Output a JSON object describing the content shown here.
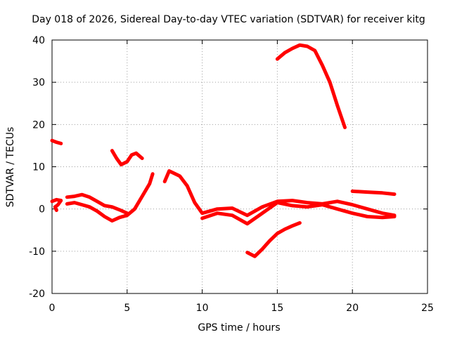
{
  "chart_data": {
    "type": "scatter",
    "title": "Day 018 of 2026, Sidereal Day-to-day VTEC variation (SDTVAR) for receiver kitg",
    "xlabel": "GPS time / hours",
    "ylabel": "SDTVAR / TECUs",
    "xlim": [
      0,
      25
    ],
    "ylim": [
      -20,
      40
    ],
    "xticks": [
      0,
      5,
      10,
      15,
      20,
      25
    ],
    "yticks": [
      -20,
      -10,
      0,
      10,
      20,
      30,
      40
    ],
    "grid": true,
    "marker_color": "#ff0000",
    "series": [
      {
        "name": "segment-1",
        "points": [
          [
            0,
            16.2
          ],
          [
            0.3,
            15.8
          ],
          [
            0.6,
            15.5
          ]
        ]
      },
      {
        "name": "segment-2",
        "points": [
          [
            0,
            1.8
          ],
          [
            0.3,
            2.2
          ],
          [
            0.6,
            2.0
          ],
          [
            0.4,
            1.0
          ],
          [
            0.2,
            0.5
          ],
          [
            0.3,
            -0.3
          ]
        ]
      },
      {
        "name": "segment-3",
        "points": [
          [
            1.0,
            2.8
          ],
          [
            1.5,
            3.0
          ],
          [
            2.0,
            3.4
          ],
          [
            2.5,
            2.8
          ],
          [
            3.0,
            1.8
          ],
          [
            3.5,
            0.8
          ],
          [
            4.0,
            0.5
          ],
          [
            4.5,
            -0.2
          ],
          [
            5.0,
            -1.0
          ]
        ]
      },
      {
        "name": "segment-4",
        "points": [
          [
            1.0,
            1.2
          ],
          [
            1.5,
            1.5
          ],
          [
            2.0,
            1.0
          ],
          [
            2.5,
            0.5
          ],
          [
            3.0,
            -0.5
          ],
          [
            3.5,
            -1.8
          ],
          [
            4.0,
            -2.8
          ],
          [
            4.5,
            -2.0
          ],
          [
            5.0,
            -1.5
          ],
          [
            5.5,
            0.0
          ],
          [
            6.0,
            3.0
          ],
          [
            6.5,
            6.0
          ],
          [
            6.7,
            8.3
          ]
        ]
      },
      {
        "name": "segment-5",
        "points": [
          [
            4.0,
            13.8
          ],
          [
            4.3,
            12.0
          ],
          [
            4.6,
            10.5
          ],
          [
            5.0,
            11.2
          ],
          [
            5.3,
            12.8
          ],
          [
            5.6,
            13.2
          ],
          [
            6.0,
            12.0
          ]
        ]
      },
      {
        "name": "segment-6",
        "points": [
          [
            7.5,
            6.5
          ],
          [
            7.8,
            9.0
          ],
          [
            8.5,
            7.8
          ],
          [
            9.0,
            5.5
          ],
          [
            9.5,
            1.5
          ],
          [
            10.0,
            -1.0
          ],
          [
            11.0,
            0.0
          ],
          [
            12.0,
            0.2
          ],
          [
            13.0,
            -1.5
          ],
          [
            14.0,
            0.5
          ],
          [
            15.0,
            1.8
          ],
          [
            16.0,
            2.0
          ],
          [
            17.0,
            1.5
          ],
          [
            18.0,
            1.2
          ],
          [
            19.0,
            1.8
          ],
          [
            20.0,
            1.0
          ],
          [
            21.0,
            0.0
          ],
          [
            22.0,
            -1.0
          ],
          [
            22.8,
            -1.5
          ]
        ]
      },
      {
        "name": "segment-7",
        "points": [
          [
            10.0,
            -2.2
          ],
          [
            11.0,
            -1.0
          ],
          [
            12.0,
            -1.5
          ],
          [
            13.0,
            -3.5
          ],
          [
            14.0,
            -1.0
          ],
          [
            15.0,
            1.5
          ],
          [
            16.0,
            0.8
          ],
          [
            17.0,
            0.5
          ],
          [
            18.0,
            1.0
          ],
          [
            19.0,
            0.0
          ],
          [
            20.0,
            -1.0
          ],
          [
            21.0,
            -1.8
          ],
          [
            22.0,
            -2.0
          ],
          [
            22.8,
            -1.8
          ]
        ]
      },
      {
        "name": "segment-8",
        "points": [
          [
            13.0,
            -10.3
          ],
          [
            13.5,
            -11.2
          ],
          [
            14.0,
            -9.5
          ],
          [
            14.5,
            -7.5
          ],
          [
            15.0,
            -5.8
          ],
          [
            15.5,
            -4.8
          ],
          [
            16.0,
            -4.0
          ],
          [
            16.5,
            -3.3
          ]
        ]
      },
      {
        "name": "segment-9",
        "points": [
          [
            15.0,
            35.5
          ],
          [
            15.5,
            37.0
          ],
          [
            16.0,
            38.0
          ],
          [
            16.5,
            38.8
          ],
          [
            17.0,
            38.5
          ],
          [
            17.5,
            37.5
          ],
          [
            18.0,
            34.0
          ],
          [
            18.5,
            30.0
          ],
          [
            19.0,
            24.5
          ],
          [
            19.5,
            19.3
          ]
        ]
      },
      {
        "name": "segment-10",
        "points": [
          [
            20.0,
            4.2
          ],
          [
            21.0,
            4.0
          ],
          [
            22.0,
            3.8
          ],
          [
            22.8,
            3.5
          ]
        ]
      }
    ]
  }
}
